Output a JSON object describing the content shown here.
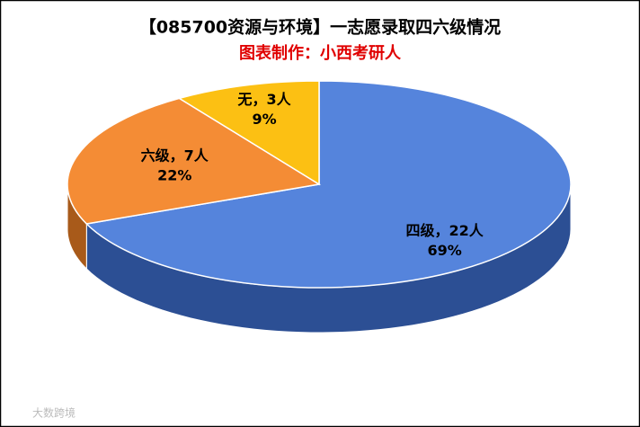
{
  "chart_data": {
    "type": "pie3d",
    "title": "【085700资源与环境】一志愿录取四六级情况",
    "subtitle": "图表制作：小西考研人",
    "labels": [
      "四级，22人",
      "六级，7人",
      "无，3人"
    ],
    "values": [
      22,
      7,
      3
    ],
    "percentages": [
      69,
      22,
      9
    ],
    "percentage_labels": [
      "69%",
      "22%",
      "9%"
    ],
    "colors": [
      "#5584dc",
      "#f48c35",
      "#fcc013"
    ],
    "side_colors": [
      "#2c4f94",
      "#a85a1a",
      "#b58a08"
    ],
    "watermark": "大数跨境"
  }
}
